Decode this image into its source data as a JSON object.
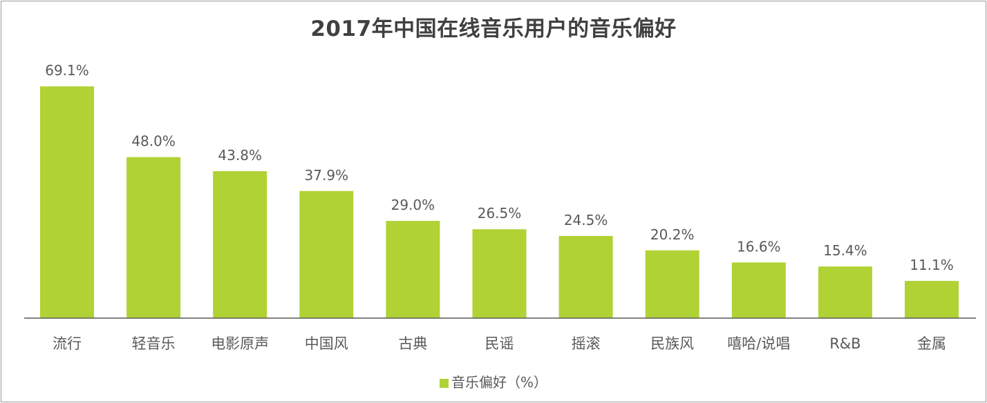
{
  "chart_data": {
    "type": "bar",
    "title": "2017年中国在线音乐用户的音乐偏好",
    "categories": [
      "流行",
      "轻音乐",
      "电影原声",
      "中国风",
      "古典",
      "民谣",
      "摇滚",
      "民族风",
      "嘻哈/说唱",
      "R&B",
      "金属"
    ],
    "series": [
      {
        "name": "音乐偏好（%）",
        "values": [
          69.1,
          48.0,
          43.8,
          37.9,
          29.0,
          26.5,
          24.5,
          20.2,
          16.6,
          15.4,
          11.1
        ],
        "labels": [
          "69.1%",
          "48.0%",
          "43.8%",
          "37.9%",
          "29.0%",
          "26.5%",
          "24.5%",
          "20.2%",
          "16.6%",
          "15.4%",
          "11.1%"
        ]
      }
    ],
    "ylim": [
      0,
      80
    ],
    "grid": false,
    "legend_position": "bottom",
    "bar_color": "#b0d235",
    "axis_color": "#595959",
    "text_color": "#595959"
  }
}
